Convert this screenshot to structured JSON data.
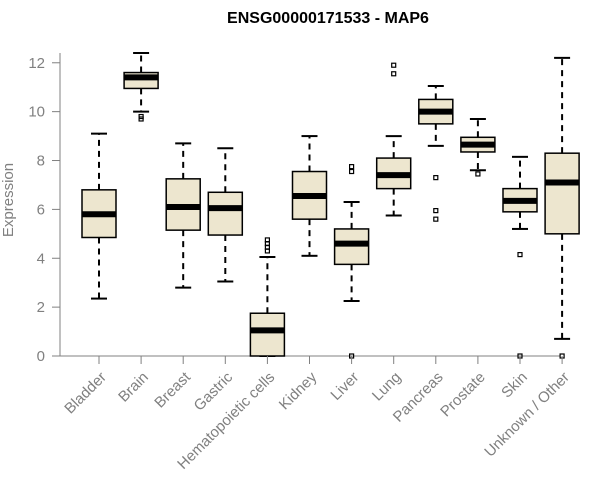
{
  "chart_data": {
    "type": "boxplot",
    "title": "ENSG00000171533 - MAP6",
    "xlabel": "",
    "ylabel": "Expression",
    "ylim": [
      0,
      12.4
    ],
    "yticks": [
      0,
      2,
      4,
      6,
      8,
      10,
      12
    ],
    "box_color": "#EDE6CF",
    "categories": [
      "Bladder",
      "Brain",
      "Breast",
      "Gastric",
      "Hematopoietic cells",
      "Kidney",
      "Liver",
      "Lung",
      "Pancreas",
      "Prostate",
      "Skin",
      "Unknown / Other"
    ],
    "boxes": [
      {
        "name": "Bladder",
        "whisker_low": 2.35,
        "q1": 4.85,
        "median": 5.8,
        "q3": 6.8,
        "whisker_high": 9.1,
        "outliers": []
      },
      {
        "name": "Brain",
        "whisker_low": 10.0,
        "q1": 10.95,
        "median": 11.4,
        "q3": 11.6,
        "whisker_high": 12.4,
        "outliers": [
          9.7,
          9.8
        ]
      },
      {
        "name": "Breast",
        "whisker_low": 2.8,
        "q1": 5.15,
        "median": 6.1,
        "q3": 7.25,
        "whisker_high": 8.7,
        "outliers": []
      },
      {
        "name": "Gastric",
        "whisker_low": 3.05,
        "q1": 4.95,
        "median": 6.05,
        "q3": 6.7,
        "whisker_high": 8.5,
        "outliers": []
      },
      {
        "name": "Hematopoietic cells",
        "whisker_low": 0.0,
        "q1": 0.0,
        "median": 1.05,
        "q3": 1.75,
        "whisker_high": 4.05,
        "outliers": [
          4.3,
          4.45,
          4.6,
          4.75
        ]
      },
      {
        "name": "Kidney",
        "whisker_low": 4.1,
        "q1": 5.6,
        "median": 6.55,
        "q3": 7.55,
        "whisker_high": 9.0,
        "outliers": []
      },
      {
        "name": "Liver",
        "whisker_low": 2.25,
        "q1": 3.75,
        "median": 4.6,
        "q3": 5.2,
        "whisker_high": 6.3,
        "outliers": [
          0.0,
          7.55,
          7.75
        ]
      },
      {
        "name": "Lung",
        "whisker_low": 5.75,
        "q1": 6.85,
        "median": 7.4,
        "q3": 8.1,
        "whisker_high": 9.0,
        "outliers": [
          11.55,
          11.9
        ]
      },
      {
        "name": "Pancreas",
        "whisker_low": 8.6,
        "q1": 9.5,
        "median": 10.0,
        "q3": 10.5,
        "whisker_high": 11.05,
        "outliers": [
          7.3,
          5.95,
          5.6
        ]
      },
      {
        "name": "Prostate",
        "whisker_low": 7.6,
        "q1": 8.35,
        "median": 8.65,
        "q3": 8.95,
        "whisker_high": 9.7,
        "outliers": [
          7.45
        ]
      },
      {
        "name": "Skin",
        "whisker_low": 5.2,
        "q1": 5.9,
        "median": 6.35,
        "q3": 6.85,
        "whisker_high": 8.15,
        "outliers": [
          0.0,
          4.15
        ]
      },
      {
        "name": "Unknown / Other",
        "whisker_low": 0.7,
        "q1": 5.0,
        "median": 7.1,
        "q3": 8.3,
        "whisker_high": 12.2,
        "outliers": [
          0.0
        ]
      }
    ]
  }
}
